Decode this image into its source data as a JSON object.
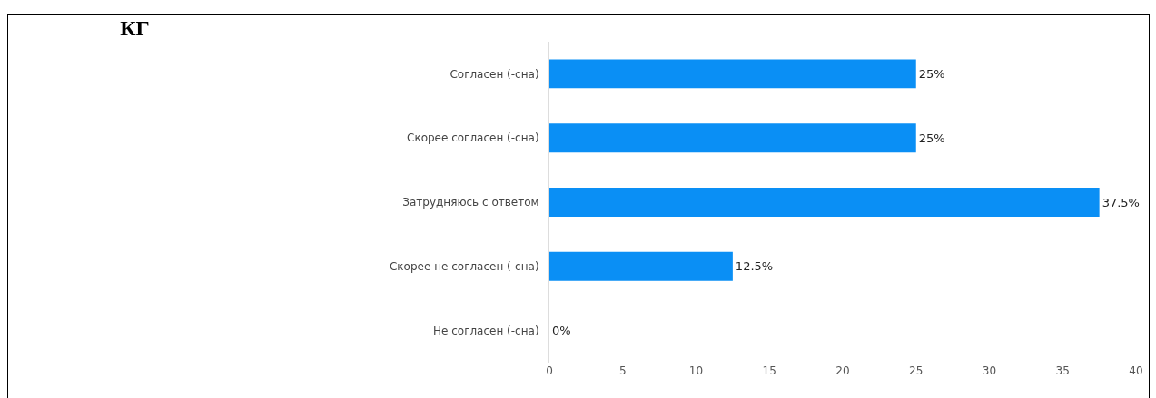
{
  "chart_data": {
    "type": "bar",
    "orientation": "horizontal",
    "title": "КГ",
    "categories": [
      "Согласен (-сна)",
      "Скорее согласен (-сна)",
      "Затрудняюсь с ответом",
      "Скорее не согласен (-сна)",
      "Не согласен (-сна)"
    ],
    "values": [
      25,
      25,
      37.5,
      12.5,
      0
    ],
    "value_labels": [
      "25%",
      "25%",
      "37.5%",
      "12.5%",
      "0%"
    ],
    "color": "#0a8ff5",
    "xlim": [
      0,
      40
    ],
    "xticks": [
      0,
      5,
      10,
      15,
      20,
      25,
      30,
      35,
      40
    ],
    "grid": false,
    "legend": false
  }
}
